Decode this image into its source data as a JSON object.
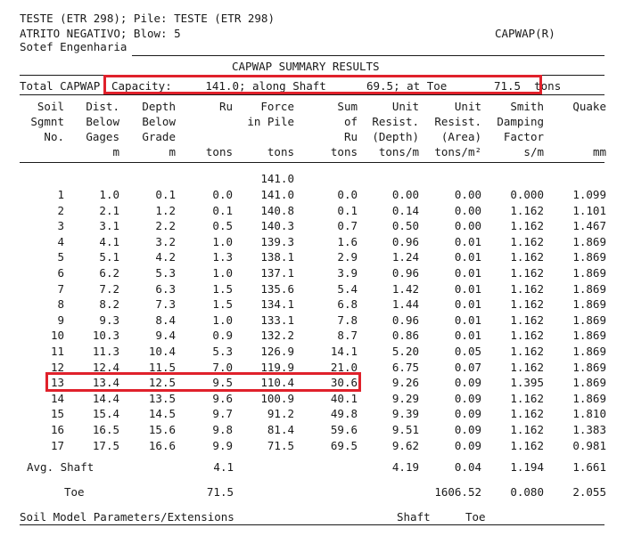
{
  "header": {
    "line1": "TESTE (ETR 298); Pile: TESTE (ETR 298)",
    "line2": "ATRITO NEGATIVO; Blow: 5",
    "line3": "Sotef Engenharia",
    "program": "CAPWAP(R)"
  },
  "summary": {
    "title": "CAPWAP SUMMARY RESULTS",
    "prefix": "Total CAPWAP",
    "capacity": "Capacity:     141.0; along Shaft      69.5; at Toe       71.5  tons"
  },
  "columns": [
    {
      "l1": "Soil",
      "l2": "Sgmnt",
      "l3": "No.",
      "l4": ""
    },
    {
      "l1": "Dist.",
      "l2": "Below",
      "l3": "Gages",
      "l4": "m"
    },
    {
      "l1": "Depth",
      "l2": "Below",
      "l3": "Grade",
      "l4": "m"
    },
    {
      "l1": "Ru",
      "l2": "",
      "l3": "",
      "l4": "tons"
    },
    {
      "l1": "Force",
      "l2": "in Pile",
      "l3": "",
      "l4": "tons"
    },
    {
      "l1": "Sum",
      "l2": "of",
      "l3": "Ru",
      "l4": "tons"
    },
    {
      "l1": "Unit",
      "l2": "Resist.",
      "l3": "(Depth)",
      "l4": "tons/m"
    },
    {
      "l1": "Unit",
      "l2": "Resist.",
      "l3": "(Area)",
      "l4": "tons/m²"
    },
    {
      "l1": "Smith",
      "l2": "Damping",
      "l3": "Factor",
      "l4": "s/m"
    },
    {
      "l1": "Quake",
      "l2": "",
      "l3": "",
      "l4": "mm"
    }
  ],
  "top_force": "141.0",
  "rows": [
    [
      "1",
      "1.0",
      "0.1",
      "0.0",
      "141.0",
      "0.0",
      "0.00",
      "0.00",
      "0.000",
      "1.099"
    ],
    [
      "2",
      "2.1",
      "1.2",
      "0.1",
      "140.8",
      "0.1",
      "0.14",
      "0.00",
      "1.162",
      "1.101"
    ],
    [
      "3",
      "3.1",
      "2.2",
      "0.5",
      "140.3",
      "0.7",
      "0.50",
      "0.00",
      "1.162",
      "1.467"
    ],
    [
      "4",
      "4.1",
      "3.2",
      "1.0",
      "139.3",
      "1.6",
      "0.96",
      "0.01",
      "1.162",
      "1.869"
    ],
    [
      "5",
      "5.1",
      "4.2",
      "1.3",
      "138.1",
      "2.9",
      "1.24",
      "0.01",
      "1.162",
      "1.869"
    ],
    [
      "6",
      "6.2",
      "5.3",
      "1.0",
      "137.1",
      "3.9",
      "0.96",
      "0.01",
      "1.162",
      "1.869"
    ],
    [
      "7",
      "7.2",
      "6.3",
      "1.5",
      "135.6",
      "5.4",
      "1.42",
      "0.01",
      "1.162",
      "1.869"
    ],
    [
      "8",
      "8.2",
      "7.3",
      "1.5",
      "134.1",
      "6.8",
      "1.44",
      "0.01",
      "1.162",
      "1.869"
    ],
    [
      "9",
      "9.3",
      "8.4",
      "1.0",
      "133.1",
      "7.8",
      "0.96",
      "0.01",
      "1.162",
      "1.869"
    ],
    [
      "10",
      "10.3",
      "9.4",
      "0.9",
      "132.2",
      "8.7",
      "0.86",
      "0.01",
      "1.162",
      "1.869"
    ],
    [
      "11",
      "11.3",
      "10.4",
      "5.3",
      "126.9",
      "14.1",
      "5.20",
      "0.05",
      "1.162",
      "1.869"
    ],
    [
      "12",
      "12.4",
      "11.5",
      "7.0",
      "119.9",
      "21.0",
      "6.75",
      "0.07",
      "1.162",
      "1.869"
    ],
    [
      "13",
      "13.4",
      "12.5",
      "9.5",
      "110.4",
      "30.6",
      "9.26",
      "0.09",
      "1.395",
      "1.869"
    ],
    [
      "14",
      "14.4",
      "13.5",
      "9.6",
      "100.9",
      "40.1",
      "9.29",
      "0.09",
      "1.162",
      "1.869"
    ],
    [
      "15",
      "15.4",
      "14.5",
      "9.7",
      "91.2",
      "49.8",
      "9.39",
      "0.09",
      "1.162",
      "1.810"
    ],
    [
      "16",
      "16.5",
      "15.6",
      "9.8",
      "81.4",
      "59.6",
      "9.51",
      "0.09",
      "1.162",
      "1.383"
    ],
    [
      "17",
      "17.5",
      "16.6",
      "9.9",
      "71.5",
      "69.5",
      "9.62",
      "0.09",
      "1.162",
      "0.981"
    ]
  ],
  "avg_shaft": {
    "label": "Avg. Shaft",
    "ru": "4.1",
    "unit_depth": "4.19",
    "unit_area": "0.04",
    "damping": "1.194",
    "quake": "1.661"
  },
  "toe": {
    "label": "Toe",
    "ru": "71.5",
    "unit_area": "1606.52",
    "damping": "0.080",
    "quake": "2.055"
  },
  "footer": {
    "label": "Soil Model Parameters/Extensions",
    "shaft": "Shaft",
    "toe": "Toe"
  }
}
